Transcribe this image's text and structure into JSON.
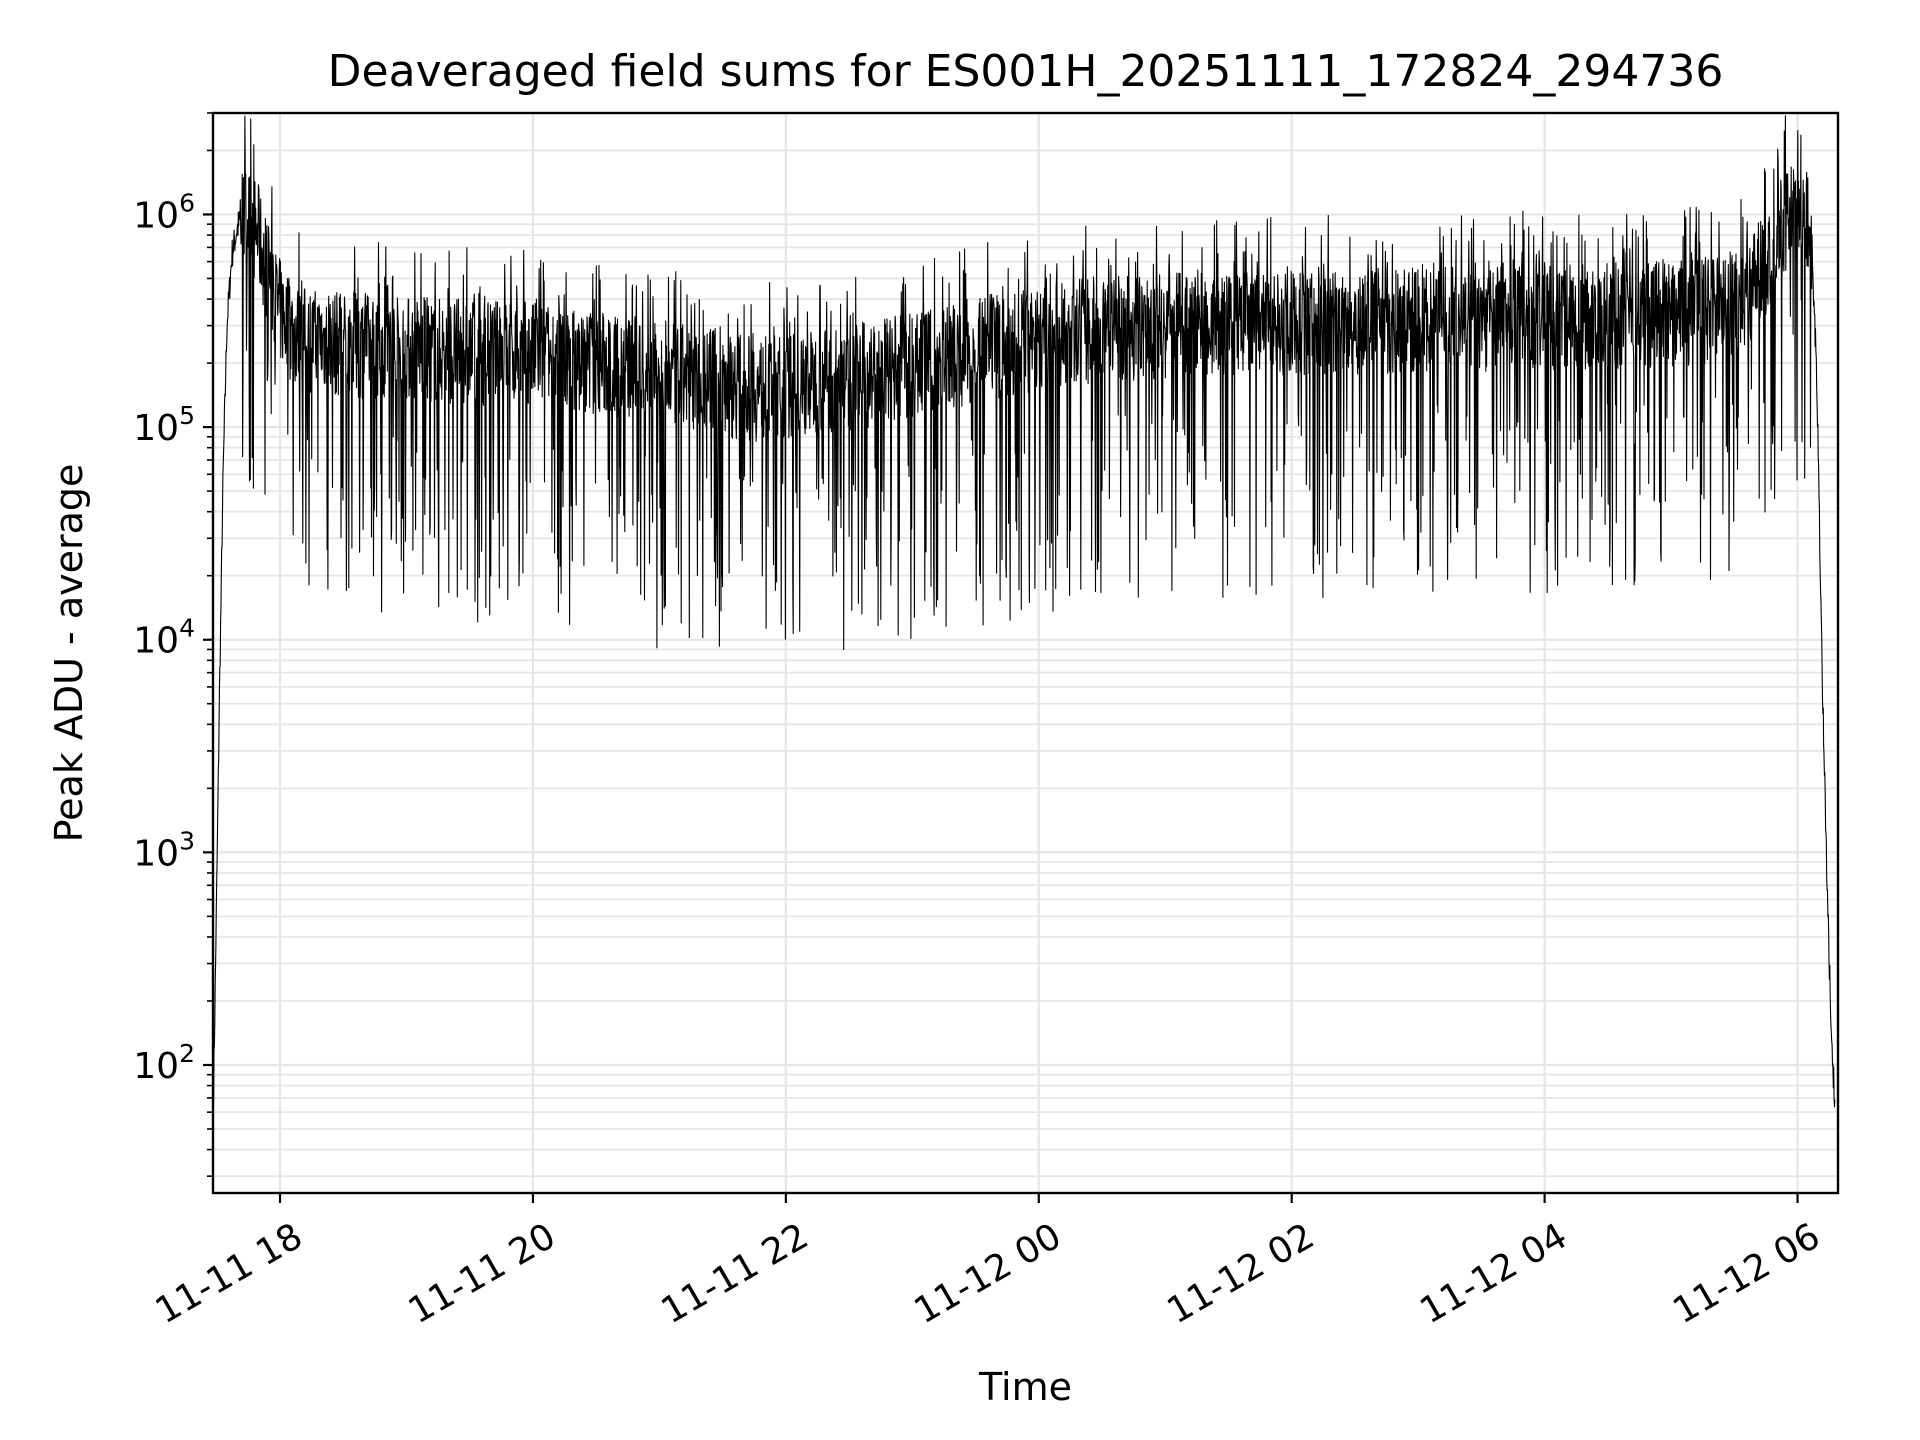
{
  "chart_data": {
    "type": "line",
    "title": "Deaveraged field sums for ES001H_20251111_172824_294736",
    "xlabel": "Time",
    "ylabel": "Peak ADU - average",
    "yscale": "log",
    "ylim": [
      25,
      3000000
    ],
    "xlim_hours": [
      17.47,
      30.32
    ],
    "grid": true,
    "line_color": "#000000",
    "grid_color": "#e6e6e6",
    "x_ticks": [
      {
        "label": "11-11 18",
        "hours": 18
      },
      {
        "label": "11-11 20",
        "hours": 20
      },
      {
        "label": "11-11 22",
        "hours": 22
      },
      {
        "label": "11-12 00",
        "hours": 24
      },
      {
        "label": "11-12 02",
        "hours": 26
      },
      {
        "label": "11-12 04",
        "hours": 28
      },
      {
        "label": "11-12 06",
        "hours": 30
      }
    ],
    "y_ticks": [
      {
        "base": "10",
        "exp": "2",
        "value": 100
      },
      {
        "base": "10",
        "exp": "3",
        "value": 1000
      },
      {
        "base": "10",
        "exp": "4",
        "value": 10000
      },
      {
        "base": "10",
        "exp": "5",
        "value": 100000
      },
      {
        "base": "10",
        "exp": "6",
        "value": 1000000
      }
    ],
    "series": [
      {
        "name": "Peak ADU - average",
        "x_hours": [
          17.47,
          17.5,
          17.52,
          17.55,
          17.58,
          17.62,
          17.66,
          17.7,
          17.75,
          17.8,
          17.85,
          17.9,
          17.95,
          18.0,
          18.1,
          18.2,
          18.3,
          18.5,
          18.7,
          19.0,
          19.3,
          19.6,
          20.0,
          20.5,
          21.0,
          21.5,
          21.8,
          22.0,
          22.3,
          22.6,
          23.0,
          23.5,
          24.0,
          24.5,
          25.0,
          25.5,
          26.0,
          26.5,
          27.0,
          27.5,
          28.0,
          28.5,
          29.0,
          29.4,
          29.6,
          29.75,
          29.85,
          29.95,
          30.05,
          30.1,
          30.15,
          30.2,
          30.25,
          30.3
        ],
        "values": [
          50,
          700,
          5000,
          60000,
          300000,
          650000,
          850000,
          1000000,
          950000,
          850000,
          700000,
          550000,
          420000,
          350000,
          280000,
          260000,
          250000,
          245000,
          240000,
          235000,
          230000,
          225000,
          220000,
          200000,
          180000,
          160000,
          150000,
          155000,
          165000,
          175000,
          195000,
          230000,
          260000,
          290000,
          300000,
          305000,
          310000,
          315000,
          320000,
          325000,
          330000,
          335000,
          340000,
          360000,
          420000,
          600000,
          850000,
          1000000,
          1100000,
          900000,
          200000,
          5000,
          300,
          50
        ]
      }
    ]
  }
}
